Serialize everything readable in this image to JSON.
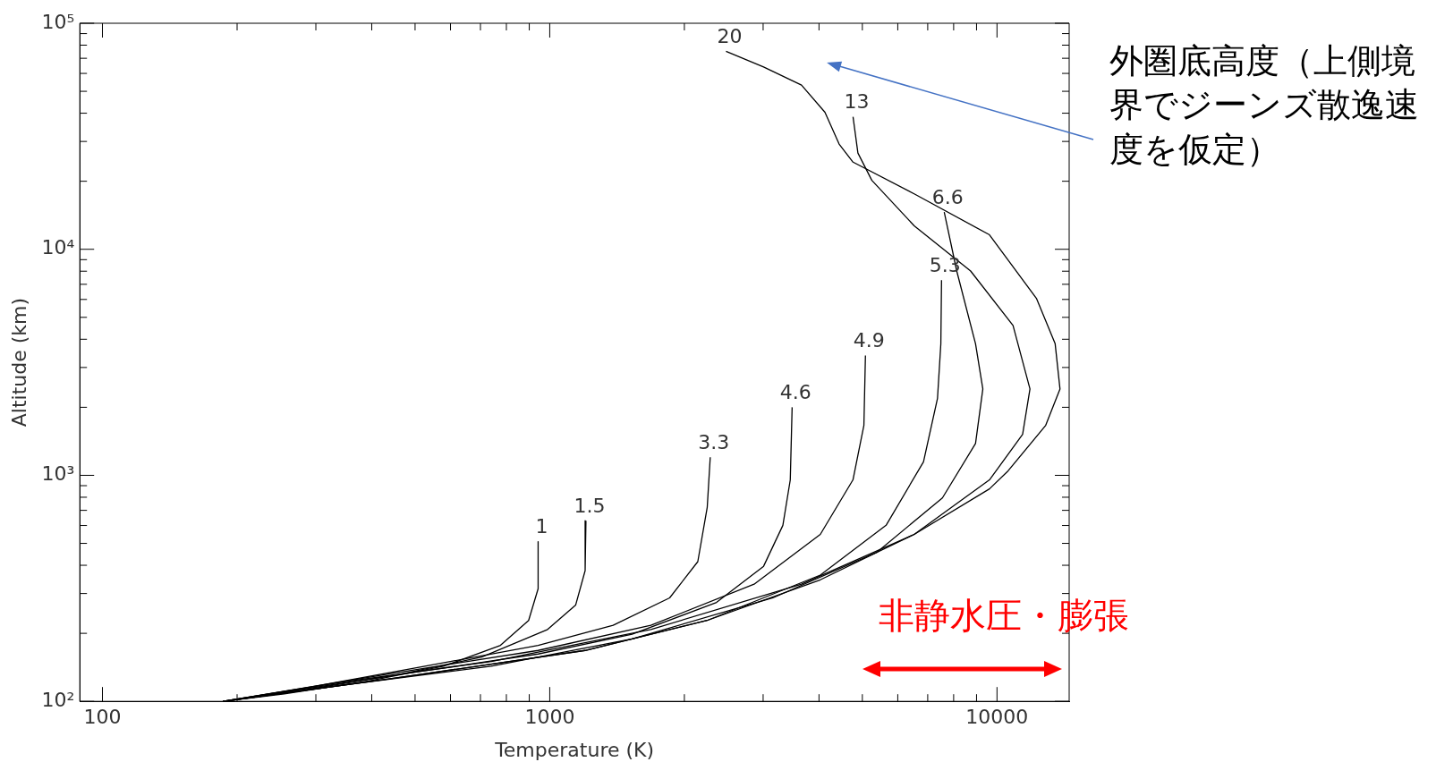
{
  "chart_data": {
    "type": "line",
    "xlabel": "Temperature (K)",
    "ylabel": "Altitude (km)",
    "log": "xy",
    "marker": "none",
    "line_style": "solid",
    "xlim": [
      89,
      14500
    ],
    "ylim": [
      100,
      100000
    ],
    "xticks": [
      100,
      {
        "value": 200,
        "label": null
      },
      {
        "value": 300,
        "label": null
      },
      {
        "value": 400,
        "label": null
      },
      {
        "value": 500,
        "label": null
      },
      {
        "value": 600,
        "label": null
      },
      {
        "value": 700,
        "label": null
      },
      {
        "value": 800,
        "label": null
      },
      {
        "value": 900,
        "label": null
      },
      1000,
      {
        "value": 2000,
        "label": null
      },
      {
        "value": 3000,
        "label": null
      },
      {
        "value": 4000,
        "label": null
      },
      {
        "value": 5000,
        "label": null
      },
      {
        "value": 6000,
        "label": null
      },
      {
        "value": 7000,
        "label": null
      },
      {
        "value": 8000,
        "label": null
      },
      {
        "value": 9000,
        "label": null
      },
      10000
    ],
    "yticks": [
      {
        "value": 100,
        "label": "10²"
      },
      {
        "value": 200,
        "label": null
      },
      {
        "value": 300,
        "label": null
      },
      {
        "value": 400,
        "label": null
      },
      {
        "value": 500,
        "label": null
      },
      {
        "value": 600,
        "label": null
      },
      {
        "value": 700,
        "label": null
      },
      {
        "value": 800,
        "label": null
      },
      {
        "value": 900,
        "label": null
      },
      {
        "value": 1000,
        "label": "10³"
      },
      {
        "value": 2000,
        "label": null
      },
      {
        "value": 3000,
        "label": null
      },
      {
        "value": 4000,
        "label": null
      },
      {
        "value": 5000,
        "label": null
      },
      {
        "value": 6000,
        "label": null
      },
      {
        "value": 7000,
        "label": null
      },
      {
        "value": 8000,
        "label": null
      },
      {
        "value": 9000,
        "label": null
      },
      {
        "value": 10000,
        "label": "10⁴"
      },
      {
        "value": 20000,
        "label": null
      },
      {
        "value": 30000,
        "label": null
      },
      {
        "value": 40000,
        "label": null
      },
      {
        "value": 50000,
        "label": null
      },
      {
        "value": 60000,
        "label": null
      },
      {
        "value": 70000,
        "label": null
      },
      {
        "value": 80000,
        "label": null
      },
      {
        "value": 90000,
        "label": null
      },
      {
        "value": 100000,
        "label": "10⁵"
      }
    ],
    "series": [
      {
        "name": "1",
        "color": "#000000",
        "x": [
          942,
          942,
          897,
          776,
          579,
          394,
          255,
          186
        ],
        "values": [
          509,
          315,
          228,
          177,
          143,
          123,
          108,
          100
        ]
      },
      {
        "name": "1.5",
        "color": "#000000",
        "x": [
          1205,
          1200,
          1143,
          989,
          705,
          455,
          280,
          186
        ],
        "values": [
          630,
          379,
          267,
          208,
          157,
          131,
          112,
          100
        ]
      },
      {
        "name": "3.3",
        "color": "#000000",
        "x": [
          2285,
          2250,
          2143,
          1854,
          1386,
          942,
          526,
          294,
          186
        ],
        "values": [
          1203,
          723,
          415,
          287,
          217,
          177,
          143,
          116,
          100
        ]
      },
      {
        "name": "4.6",
        "color": "#000000",
        "x": [
          3483,
          3450,
          3321,
          3007,
          2360,
          1528,
          942,
          455,
          186
        ],
        "values": [
          2000,
          955,
          601,
          396,
          274,
          198,
          162,
          131,
          100
        ]
      },
      {
        "name": "4.9",
        "color": "#000000",
        "x": [
          5080,
          5040,
          4764,
          4027,
          2864,
          1683,
          942,
          455,
          186
        ],
        "values": [
          3388,
          1664,
          955,
          548,
          330,
          217,
          168,
          134,
          100
        ]
      },
      {
        "name": "5.3",
        "color": "#000000",
        "x": [
          7516,
          7490,
          7362,
          6850,
          5650,
          4027,
          2248,
          1200,
          455,
          186
        ],
        "values": [
          7295,
          3821,
          2193,
          1148,
          601,
          362,
          228,
          168,
          127,
          100
        ]
      },
      {
        "name": "6.6",
        "color": "#000000",
        "x": [
          7621,
          8128,
          8954,
          9297,
          8954,
          7550,
          5380,
          3155,
          1528,
          740,
          357,
          186
        ],
        "values": [
          14620,
          8017,
          3821,
          2410,
          1383,
          794,
          456,
          287,
          189,
          143,
          119,
          100
        ]
      },
      {
        "name": "13",
        "color": "#000000",
        "x": [
          4766,
          4887,
          5250,
          6530,
          8730,
          10860,
          11850,
          11410,
          9620,
          6530,
          3655,
          1683,
          740,
          357,
          186
        ],
        "values": [
          38550,
          26650,
          20190,
          12700,
          8017,
          4607,
          2410,
          1517,
          955,
          548,
          330,
          208,
          150,
          123,
          100
        ]
      },
      {
        "name": "20",
        "color": "#000000",
        "x": [
          2478,
          3007,
          3655,
          4124,
          4436,
          4766,
          6530,
          9620,
          12250,
          13490,
          13830,
          12850,
          10590,
          9620,
          6530,
          4027,
          2248,
          1200,
          455,
          186
        ],
        "values": [
          75150,
          64100,
          53300,
          40400,
          29220,
          24300,
          17590,
          11590,
          6070,
          3821,
          2410,
          1664,
          1047,
          871,
          548,
          345,
          228,
          168,
          127,
          100
        ]
      }
    ],
    "annotations": [
      "外圏底高度（上側境界でジーンズ散逸速度を仮定）",
      "非静水圧・膨張"
    ]
  }
}
